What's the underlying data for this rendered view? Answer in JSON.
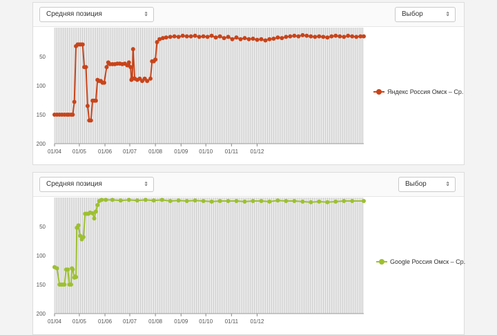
{
  "panels": [
    {
      "metric_select": "Средняя позиция",
      "choice_select": "Выбор",
      "legend": "Яндекс Россия Омск – Ср.",
      "color": "#c8441a",
      "chart_data": {
        "type": "line",
        "inverted_y": true,
        "y_ticks": [
          50,
          100,
          150,
          200
        ],
        "ylim": [
          200,
          0
        ],
        "x_tick_labels": [
          "01/04",
          "01/05",
          "01/06",
          "01/07",
          "01/08",
          "01/09",
          "01/10",
          "01/11",
          "01/12"
        ],
        "grid": "vertical daily lines",
        "legend_position": "right",
        "series": [
          {
            "name": "Яндекс Россия Омск – Ср.",
            "points": [
              [
                0,
                150
              ],
              [
                3,
                150
              ],
              [
                6,
                150
              ],
              [
                9,
                150
              ],
              [
                12,
                150
              ],
              [
                15,
                150
              ],
              [
                17,
                150
              ],
              [
                20,
                150
              ],
              [
                22,
                150
              ],
              [
                24,
                128
              ],
              [
                26,
                32
              ],
              [
                28,
                29
              ],
              [
                30,
                29
              ],
              [
                32,
                29
              ],
              [
                34,
                29
              ],
              [
                36,
                68
              ],
              [
                38,
                68
              ],
              [
                40,
                135
              ],
              [
                42,
                160
              ],
              [
                44,
                160
              ],
              [
                46,
                126
              ],
              [
                48,
                126
              ],
              [
                50,
                126
              ],
              [
                52,
                90
              ],
              [
                54,
                92
              ],
              [
                56,
                92
              ],
              [
                58,
                95
              ],
              [
                60,
                95
              ],
              [
                63,
                68
              ],
              [
                65,
                60
              ],
              [
                67,
                63
              ],
              [
                70,
                63
              ],
              [
                73,
                63
              ],
              [
                76,
                62
              ],
              [
                79,
                62
              ],
              [
                82,
                63
              ],
              [
                85,
                62
              ],
              [
                88,
                65
              ],
              [
                90,
                60
              ],
              [
                92,
                68
              ],
              [
                93,
                90
              ],
              [
                94,
                87
              ],
              [
                95,
                37
              ],
              [
                97,
                88
              ],
              [
                100,
                90
              ],
              [
                103,
                88
              ],
              [
                106,
                92
              ],
              [
                109,
                88
              ],
              [
                112,
                92
              ],
              [
                116,
                88
              ],
              [
                118,
                58
              ],
              [
                120,
                58
              ],
              [
                122,
                55
              ],
              [
                124,
                25
              ],
              [
                127,
                20
              ],
              [
                131,
                18
              ],
              [
                135,
                17
              ],
              [
                140,
                16
              ],
              [
                145,
                15
              ],
              [
                150,
                16
              ],
              [
                155,
                14
              ],
              [
                160,
                15
              ],
              [
                165,
                15
              ],
              [
                170,
                14
              ],
              [
                175,
                16
              ],
              [
                180,
                15
              ],
              [
                185,
                16
              ],
              [
                190,
                14
              ],
              [
                195,
                17
              ],
              [
                200,
                15
              ],
              [
                205,
                18
              ],
              [
                210,
                16
              ],
              [
                215,
                20
              ],
              [
                220,
                17
              ],
              [
                225,
                20
              ],
              [
                230,
                18
              ],
              [
                235,
                20
              ],
              [
                240,
                19
              ],
              [
                245,
                21
              ],
              [
                250,
                20
              ],
              [
                255,
                22
              ],
              [
                260,
                20
              ],
              [
                265,
                19
              ],
              [
                270,
                17
              ],
              [
                275,
                18
              ],
              [
                280,
                16
              ],
              [
                285,
                15
              ],
              [
                290,
                14
              ],
              [
                295,
                15
              ],
              [
                300,
                13
              ],
              [
                305,
                14
              ],
              [
                310,
                15
              ],
              [
                315,
                16
              ],
              [
                320,
                15
              ],
              [
                325,
                16
              ],
              [
                330,
                17
              ],
              [
                335,
                15
              ],
              [
                340,
                14
              ],
              [
                345,
                15
              ],
              [
                350,
                16
              ],
              [
                355,
                14
              ],
              [
                360,
                15
              ],
              [
                365,
                16
              ],
              [
                370,
                15
              ],
              [
                374,
                15
              ]
            ]
          }
        ]
      }
    },
    {
      "metric_select": "Средняя позиция",
      "choice_select": "Выбор",
      "legend": "Google Россия Омск – Ср.",
      "color": "#9dc030",
      "chart_data": {
        "type": "line",
        "inverted_y": true,
        "y_ticks": [
          50,
          100,
          150,
          200
        ],
        "ylim": [
          200,
          0
        ],
        "x_tick_labels": [
          "01/04",
          "01/05",
          "01/06",
          "01/07",
          "01/08",
          "01/09",
          "01/10",
          "01/11",
          "01/12"
        ],
        "grid": "vertical daily lines",
        "legend_position": "right",
        "series": [
          {
            "name": "Google Россия Омск – Ср.",
            "points": [
              [
                0,
                120
              ],
              [
                3,
                122
              ],
              [
                6,
                150
              ],
              [
                8,
                150
              ],
              [
                10,
                150
              ],
              [
                12,
                150
              ],
              [
                14,
                124
              ],
              [
                16,
                124
              ],
              [
                18,
                150
              ],
              [
                20,
                150
              ],
              [
                21,
                122
              ],
              [
                22,
                124
              ],
              [
                24,
                138
              ],
              [
                25,
                136
              ],
              [
                26,
                137
              ],
              [
                27,
                52
              ],
              [
                29,
                48
              ],
              [
                31,
                66
              ],
              [
                33,
                72
              ],
              [
                35,
                68
              ],
              [
                37,
                28
              ],
              [
                39,
                28
              ],
              [
                41,
                28
              ],
              [
                43,
                26
              ],
              [
                46,
                27
              ],
              [
                48,
                36
              ],
              [
                50,
                24
              ],
              [
                52,
                13
              ],
              [
                54,
                6
              ],
              [
                57,
                4
              ],
              [
                62,
                4
              ],
              [
                70,
                4
              ],
              [
                80,
                5
              ],
              [
                90,
                4
              ],
              [
                100,
                5
              ],
              [
                110,
                4
              ],
              [
                120,
                5
              ],
              [
                130,
                4
              ],
              [
                140,
                6
              ],
              [
                150,
                5
              ],
              [
                160,
                6
              ],
              [
                170,
                5
              ],
              [
                180,
                6
              ],
              [
                190,
                7
              ],
              [
                200,
                6
              ],
              [
                210,
                6
              ],
              [
                220,
                6
              ],
              [
                230,
                7
              ],
              [
                240,
                6
              ],
              [
                250,
                6
              ],
              [
                260,
                7
              ],
              [
                270,
                5
              ],
              [
                280,
                6
              ],
              [
                290,
                6
              ],
              [
                300,
                7
              ],
              [
                310,
                8
              ],
              [
                320,
                7
              ],
              [
                330,
                8
              ],
              [
                340,
                7
              ],
              [
                350,
                6
              ],
              [
                360,
                6
              ],
              [
                374,
                6
              ]
            ]
          }
        ]
      }
    }
  ]
}
